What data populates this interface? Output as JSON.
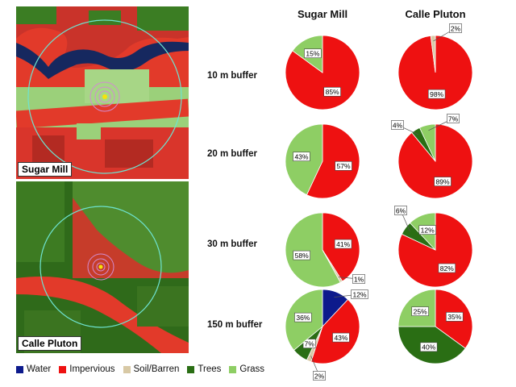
{
  "column_headers": [
    "Sugar Mill",
    "Calle Pluton"
  ],
  "maps": [
    {
      "label": "Sugar Mill"
    },
    {
      "label": "Calle Pluton"
    }
  ],
  "legend": [
    {
      "name": "Water",
      "color": "#0d1a8c"
    },
    {
      "name": "Impervious",
      "color": "#ee1111"
    },
    {
      "name": "Soil/Barren",
      "color": "#d8c9a5"
    },
    {
      "name": "Trees",
      "color": "#2a6e14"
    },
    {
      "name": "Grass",
      "color": "#8ece64"
    }
  ],
  "chart_data": [
    {
      "type": "pie",
      "site": "Sugar Mill",
      "buffer": "10 m buffer",
      "slices": [
        {
          "class": "Impervious",
          "value": 85,
          "label": "85%"
        },
        {
          "class": "Grass",
          "value": 15,
          "label": "15%"
        }
      ]
    },
    {
      "type": "pie",
      "site": "Calle Pluton",
      "buffer": "10 m buffer",
      "slices": [
        {
          "class": "Impervious",
          "value": 98,
          "label": "98%"
        },
        {
          "class": "Soil/Barren",
          "value": 2,
          "label": "2%"
        }
      ]
    },
    {
      "type": "pie",
      "site": "Sugar Mill",
      "buffer": "20 m buffer",
      "slices": [
        {
          "class": "Impervious",
          "value": 57,
          "label": "57%"
        },
        {
          "class": "Grass",
          "value": 43,
          "label": "43%"
        }
      ]
    },
    {
      "type": "pie",
      "site": "Calle Pluton",
      "buffer": "20 m buffer",
      "slices": [
        {
          "class": "Impervious",
          "value": 89,
          "label": "89%"
        },
        {
          "class": "Trees",
          "value": 4,
          "label": "4%"
        },
        {
          "class": "Grass",
          "value": 7,
          "label": "7%"
        }
      ]
    },
    {
      "type": "pie",
      "site": "Sugar Mill",
      "buffer": "30 m buffer",
      "slices": [
        {
          "class": "Impervious",
          "value": 41,
          "label": "41%"
        },
        {
          "class": "Soil/Barren",
          "value": 1,
          "label": "1%"
        },
        {
          "class": "Grass",
          "value": 58,
          "label": "58%"
        }
      ]
    },
    {
      "type": "pie",
      "site": "Calle Pluton",
      "buffer": "30 m buffer",
      "slices": [
        {
          "class": "Impervious",
          "value": 82,
          "label": "82%"
        },
        {
          "class": "Trees",
          "value": 6,
          "label": "6%"
        },
        {
          "class": "Grass",
          "value": 12,
          "label": "12%"
        }
      ]
    },
    {
      "type": "pie",
      "site": "Sugar Mill",
      "buffer": "150 m buffer",
      "slices": [
        {
          "class": "Water",
          "value": 12,
          "label": "12%"
        },
        {
          "class": "Impervious",
          "value": 43,
          "label": "43%"
        },
        {
          "class": "Soil/Barren",
          "value": 2,
          "label": "2%"
        },
        {
          "class": "Trees",
          "value": 7,
          "label": "7%"
        },
        {
          "class": "Grass",
          "value": 36,
          "label": "36%"
        }
      ]
    },
    {
      "type": "pie",
      "site": "Calle Pluton",
      "buffer": "150 m buffer",
      "slices": [
        {
          "class": "Impervious",
          "value": 35,
          "label": "35%"
        },
        {
          "class": "Trees",
          "value": 40,
          "label": "40%"
        },
        {
          "class": "Grass",
          "value": 25,
          "label": "25%"
        }
      ]
    }
  ]
}
